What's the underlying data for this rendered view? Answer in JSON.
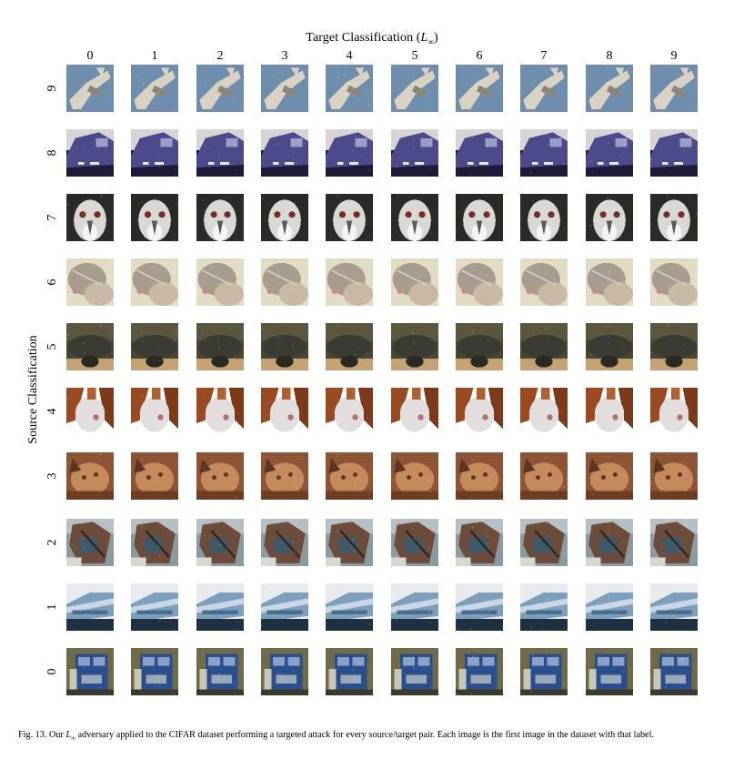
{
  "figure": {
    "top_title_text": "Target Classification (",
    "top_title_math": "L",
    "top_title_sub": "∞",
    "top_title_close": ")",
    "y_title": "Source Classification",
    "target_labels": [
      "0",
      "1",
      "2",
      "3",
      "4",
      "5",
      "6",
      "7",
      "8",
      "9"
    ],
    "source_labels": [
      "9",
      "8",
      "7",
      "6",
      "5",
      "4",
      "3",
      "2",
      "1",
      "0"
    ],
    "rows": [
      {
        "source": "9",
        "subject": "airplane",
        "colors": {
          "bg": "#6f8eae",
          "main": "#d9d2c2",
          "accent": "#8a8578"
        }
      },
      {
        "source": "8",
        "subject": "ship",
        "colors": {
          "bg": "#d8d3d6",
          "main": "#4c4a8a",
          "accent": "#1d1b38"
        }
      },
      {
        "source": "7",
        "subject": "horse",
        "colors": {
          "bg": "#2a2a26",
          "main": "#d8d8d6",
          "accent": "#7d2a1e"
        }
      },
      {
        "source": "6",
        "subject": "frog",
        "colors": {
          "bg": "#e3dcc4",
          "main": "#a89c8f",
          "accent": "#c98b8f"
        }
      },
      {
        "source": "5",
        "subject": "dog",
        "colors": {
          "bg": "#4b4631",
          "main": "#3b3a33",
          "accent": "#c5a374"
        }
      },
      {
        "source": "4",
        "subject": "deer",
        "colors": {
          "bg": "#ffffff",
          "main": "#e2dedd",
          "accent": "#9a4a22"
        }
      },
      {
        "source": "3",
        "subject": "cat",
        "colors": {
          "bg": "#8e5436",
          "main": "#c58a5c",
          "accent": "#5e3520"
        }
      },
      {
        "source": "2",
        "subject": "bird",
        "colors": {
          "bg": "#8a9aa0",
          "main": "#6e4c3c",
          "accent": "#3e5a68"
        }
      },
      {
        "source": "1",
        "subject": "automobile",
        "colors": {
          "bg": "#e8eaee",
          "main": "#7c9fbe",
          "accent": "#1f3040"
        }
      },
      {
        "source": "0",
        "subject": "truck",
        "colors": {
          "bg": "#6e6a4a",
          "main": "#2b4f8c",
          "accent": "#c9c6b4"
        }
      }
    ],
    "caption_prefix": "Fig. 13.  Our ",
    "caption_math": "L",
    "caption_sub": "∞",
    "caption_rest": " adversary applied to the CIFAR dataset performing a targeted attack for every source/target pair. Each image is the first image in the dataset with that label."
  }
}
